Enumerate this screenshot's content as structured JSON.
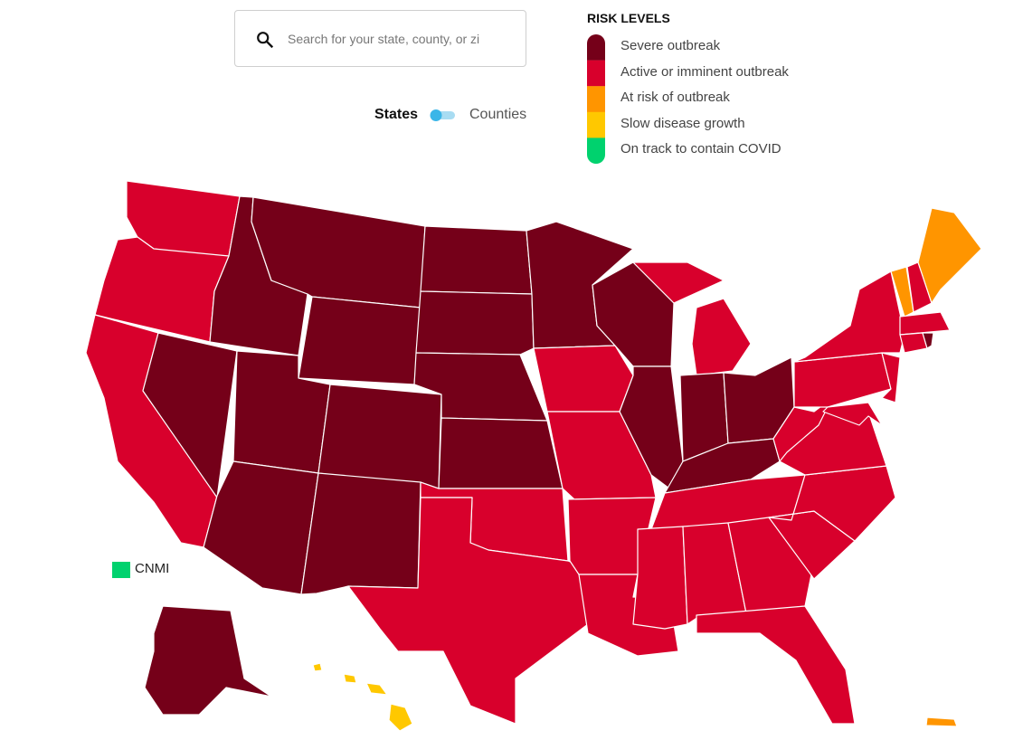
{
  "search": {
    "placeholder": "Search for your state, county, or zi"
  },
  "view_toggle": {
    "left": "States",
    "right": "Counties"
  },
  "legend": {
    "title": "RISK LEVELS",
    "items": [
      {
        "label": "Severe outbreak",
        "color": "#750019"
      },
      {
        "label": "Active or imminent outbreak",
        "color": "#d8002c"
      },
      {
        "label": "At risk of outbreak",
        "color": "#ff9500"
      },
      {
        "label": "Slow disease growth",
        "color": "#ffc800"
      },
      {
        "label": "On track to contain COVID",
        "color": "#00d26e"
      }
    ]
  },
  "territory": {
    "label": "CNMI",
    "color": "#00d26e"
  }
}
